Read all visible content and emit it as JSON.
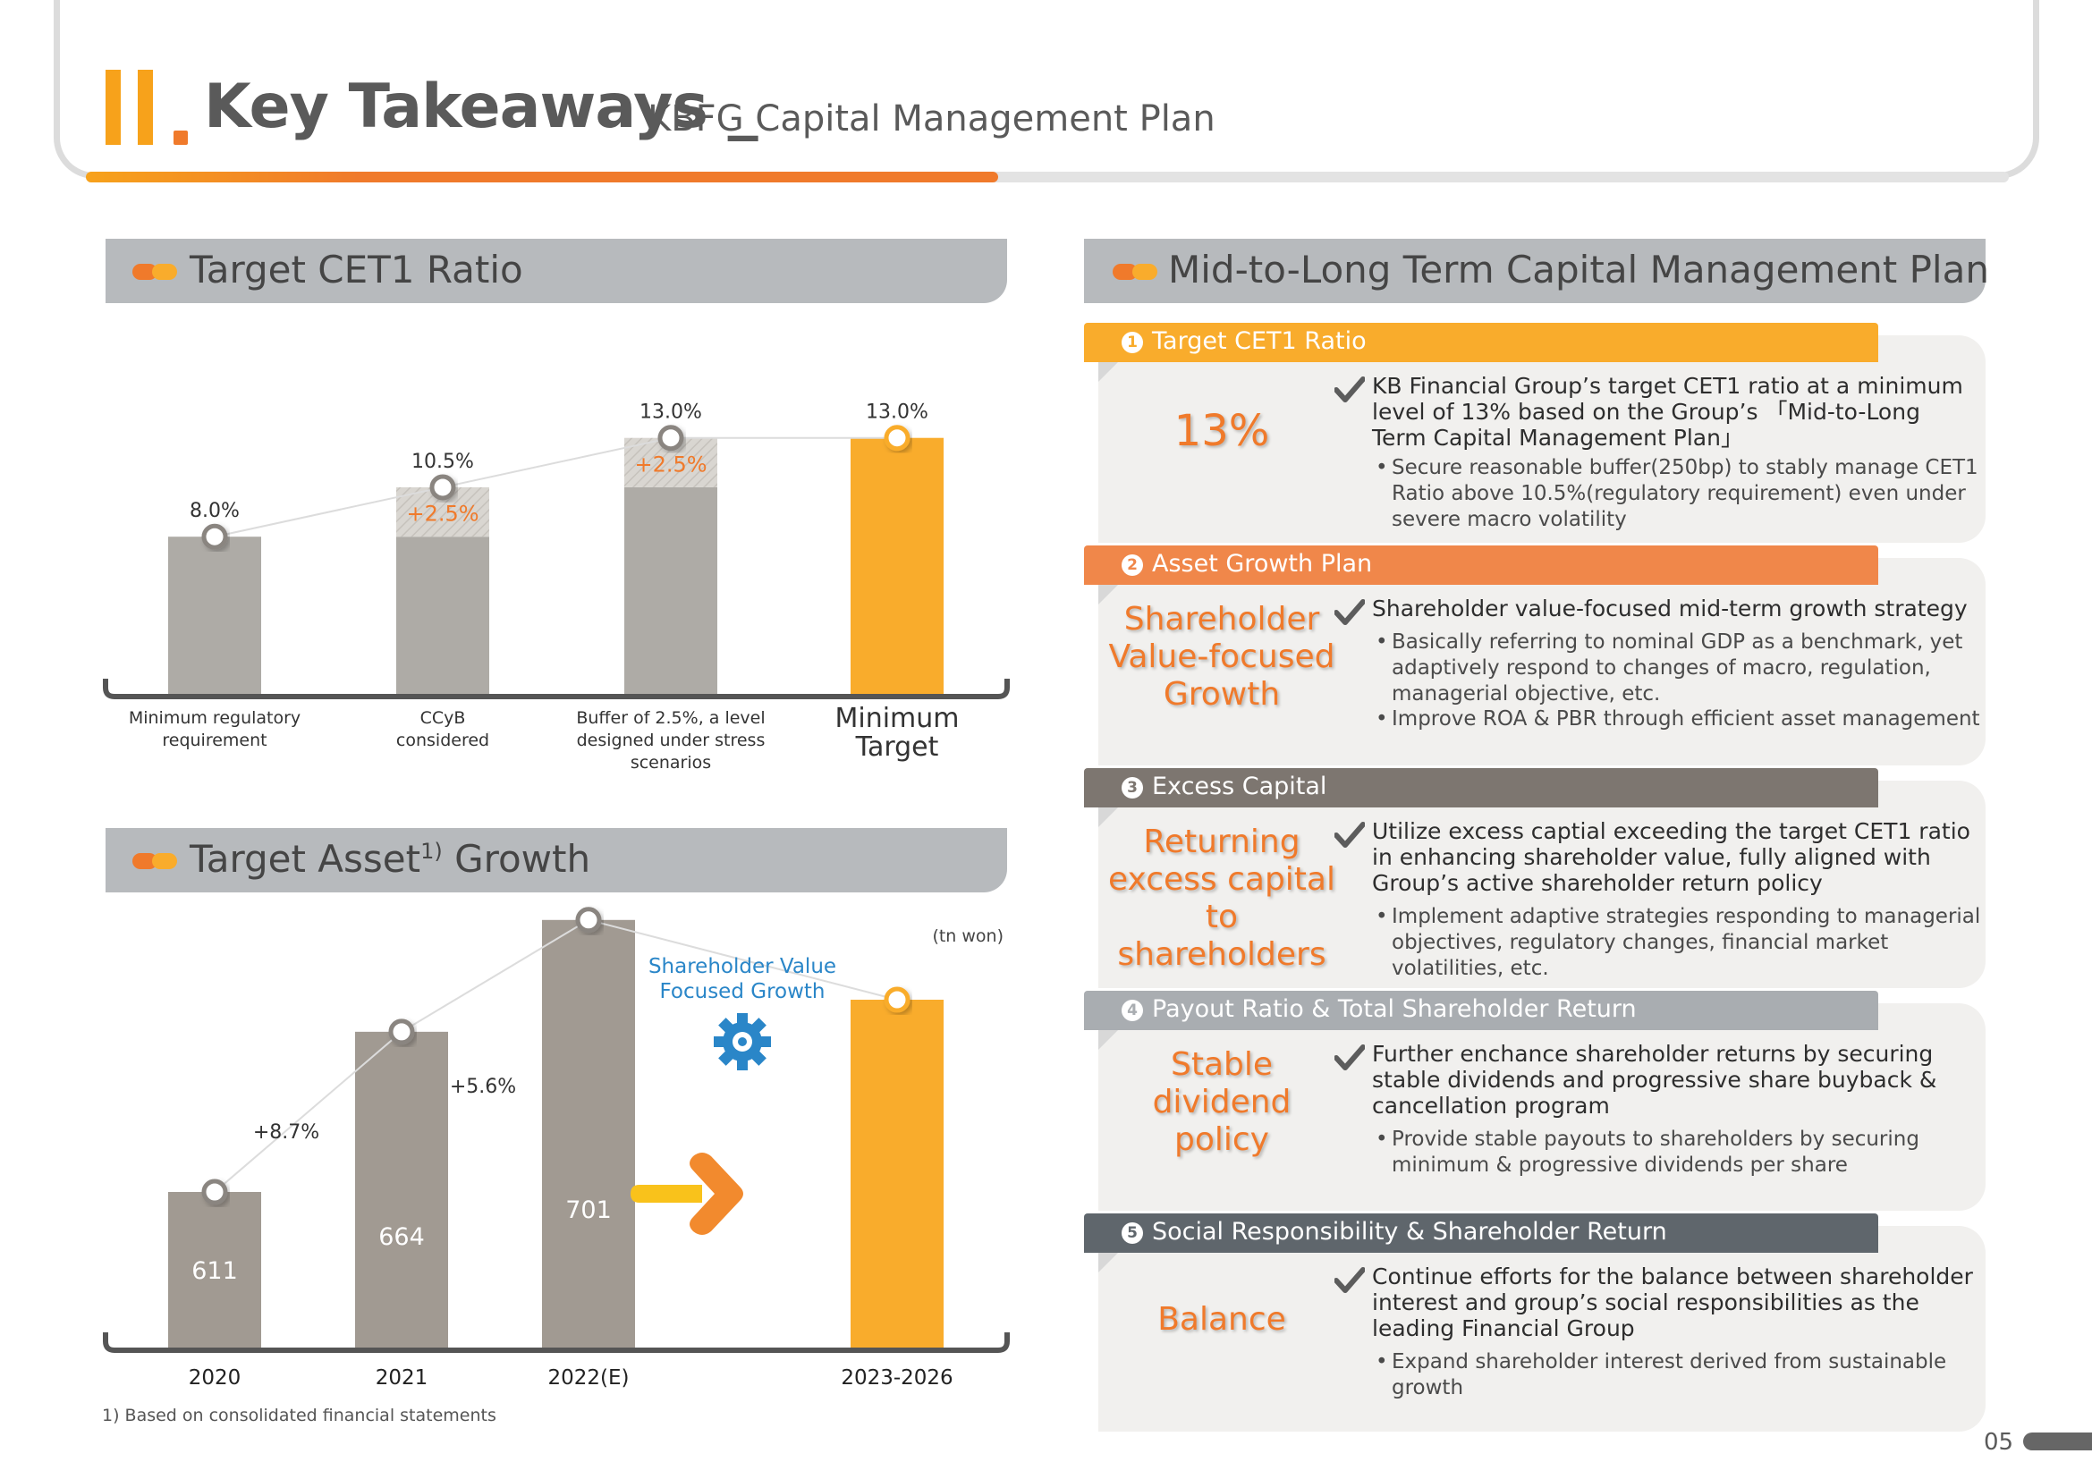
{
  "header": {
    "roman": "II",
    "title": "Key Takeaways _",
    "subtitle": "KBFG Capital Management Plan"
  },
  "sections": {
    "cet1": "Target CET1 Ratio",
    "asset_pre": "Target Asset",
    "asset_sup": "1)",
    "asset_post": " Growth",
    "plan": "Mid-to-Long Term Capital Management Plan"
  },
  "chart_data": [
    {
      "type": "bar",
      "title": "Target CET1 Ratio",
      "categories": [
        "Minimum regulatory requirement",
        "CCyB considered",
        "Buffer of 2.5%, a level designed under stress scenarios",
        "Minimum Target"
      ],
      "category_lines": [
        [
          "Minimum regulatory",
          "requirement"
        ],
        [
          "CCyB",
          "considered"
        ],
        [
          "Buffer of 2.5%, a level",
          "designed under stress",
          "scenarios"
        ],
        [
          "Minimum",
          "Target"
        ]
      ],
      "series": [
        {
          "values": [
            8.0,
            8.0,
            10.5,
            13.0
          ]
        },
        {
          "values": [
            0,
            2.5,
            2.5,
            0
          ]
        }
      ],
      "totals": [
        8.0,
        10.5,
        13.0,
        13.0
      ],
      "total_labels": [
        "8.0%",
        "10.5%",
        "13.0%",
        "13.0%"
      ],
      "increment_labels": [
        "",
        "+2.5%",
        "+2.5%",
        ""
      ],
      "ylim": [
        0,
        14
      ],
      "colors": {
        "base": "#aeaba6",
        "increment": "#d6d3ce",
        "target": "#f9ac2c",
        "label": "#f07a2b"
      },
      "grid": false
    },
    {
      "type": "bar",
      "title": "Target Asset Growth",
      "unit": "(tn won)",
      "categories": [
        "2020",
        "2021",
        "2022(E)",
        "2023-2026"
      ],
      "values": [
        611,
        664,
        701,
        null
      ],
      "value_labels": [
        "611",
        "664",
        "701",
        ""
      ],
      "growth_labels": [
        "+8.7%",
        "+5.6%"
      ],
      "annotation": [
        "Shareholder Value",
        "Focused Growth"
      ],
      "colors": {
        "bar": "#a19a92",
        "target": "#f9ac2c",
        "annotation": "#2a86c8"
      },
      "grid": false
    }
  ],
  "footnote": "1) Based on consolidated financial statements",
  "panels": [
    {
      "num": "1",
      "header": "Target CET1 Ratio",
      "color": "#f9ac2c",
      "keyword": "13%",
      "main": "KB Financial Group’s target CET1 ratio at a minimum level of 13% based on the Group’s 「Mid-to-Long Term Capital Management Plan」",
      "bullets": [
        "Secure reasonable buffer(250bp) to stably manage CET1 Ratio above 10.5%(regulatory requirement) even under severe macro volatility"
      ]
    },
    {
      "num": "2",
      "header": "Asset Growth Plan",
      "color": "#f0874a",
      "keyword": "Shareholder Value-focused Growth",
      "keyword_lines": [
        "Shareholder",
        "Value-focused",
        "Growth"
      ],
      "main": "Shareholder value-focused mid-term growth strategy",
      "bullets": [
        "Basically referring to nominal GDP as a benchmark, yet adaptively respond to changes of macro, regulation, managerial objective, etc.",
        "Improve ROA & PBR  through efficient asset management"
      ]
    },
    {
      "num": "3",
      "header": "Excess Capital",
      "color": "#7d7670",
      "keyword": "Returning excess capital to shareholders",
      "keyword_lines": [
        "Returning",
        "excess capital",
        "to shareholders"
      ],
      "main": "Utilize excess captial exceeding the target CET1 ratio in enhancing shareholder value, fully aligned with Group’s active shareholder return policy",
      "bullets": [
        "Implement adaptive strategies responding to managerial objectives, regulatory changes, financial market volatilities, etc."
      ]
    },
    {
      "num": "4",
      "header": "Payout Ratio & Total Shareholder Return",
      "color": "#a9adb1",
      "keyword": "Stable dividend policy",
      "keyword_lines": [
        "Stable",
        "dividend",
        "policy"
      ],
      "main": "Further enchance shareholder returns by securing stable dividends and progressive share buyback & cancellation program",
      "bullets": [
        "Provide stable payouts to shareholders by securing minimum & progressive dividends per share"
      ]
    },
    {
      "num": "5",
      "header": "Social Responsibility & Shareholder Return",
      "color": "#5f666c",
      "keyword": "Balance",
      "main": "Continue efforts for the balance between shareholder interest and group’s social responsibilities as the leading Financial Group",
      "bullets": [
        "Expand shareholder interest derived from sustainable growth"
      ]
    }
  ],
  "page_number": "05"
}
